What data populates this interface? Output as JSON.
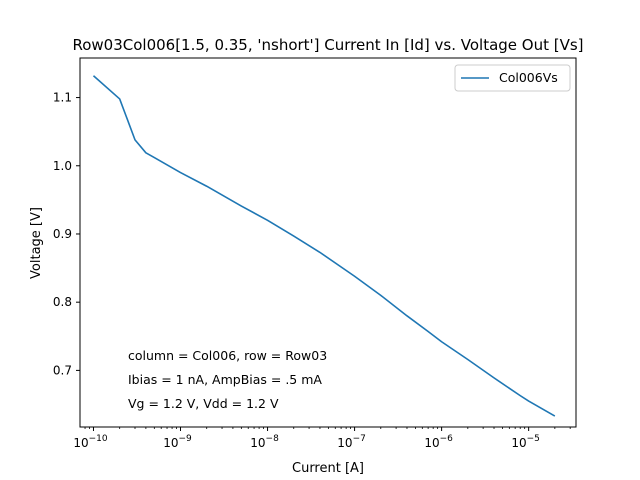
{
  "chart_data": {
    "type": "line",
    "title": "Row03Col006[1.5, 0.35, 'nshort'] Current In [Id] vs. Voltage Out [Vs]",
    "xlabel": "Current [A]",
    "ylabel": "Voltage [V]",
    "xscale": "log",
    "xlim": [
      7e-11,
      3.5e-05
    ],
    "ylim": [
      0.617,
      1.158
    ],
    "x_ticks": [
      {
        "base": "10",
        "exp": "−10",
        "value": 1e-10
      },
      {
        "base": "10",
        "exp": "−9",
        "value": 1e-09
      },
      {
        "base": "10",
        "exp": "−8",
        "value": 1e-08
      },
      {
        "base": "10",
        "exp": "−7",
        "value": 1e-07
      },
      {
        "base": "10",
        "exp": "−6",
        "value": 1e-06
      },
      {
        "base": "10",
        "exp": "−5",
        "value": 1e-05
      }
    ],
    "y_ticks": [
      {
        "label": "0.7",
        "value": 0.7
      },
      {
        "label": "0.8",
        "value": 0.8
      },
      {
        "label": "0.9",
        "value": 0.9
      },
      {
        "label": "1.0",
        "value": 1.0
      },
      {
        "label": "1.1",
        "value": 1.1
      }
    ],
    "grid": false,
    "legend_position": "top-right",
    "series": [
      {
        "name": "Col006Vs",
        "color": "#1f77b4",
        "x": [
          1e-10,
          2e-10,
          3e-10,
          4e-10,
          5e-10,
          1e-09,
          2e-09,
          5e-09,
          1e-08,
          2e-08,
          4e-08,
          1e-07,
          2e-07,
          4e-07,
          7e-07,
          1e-06,
          2e-06,
          4e-06,
          8e-06,
          1e-05,
          2e-05
        ],
        "y": [
          1.132,
          1.098,
          1.038,
          1.019,
          1.012,
          0.99,
          0.97,
          0.941,
          0.92,
          0.897,
          0.873,
          0.838,
          0.81,
          0.78,
          0.757,
          0.742,
          0.716,
          0.689,
          0.663,
          0.655,
          0.633
        ]
      }
    ],
    "annotations": [
      "column = Col006, row = Row03",
      "Ibias = 1 nA, AmpBias = .5 mA",
      "Vg = 1.2 V, Vdd = 1.2 V"
    ]
  }
}
